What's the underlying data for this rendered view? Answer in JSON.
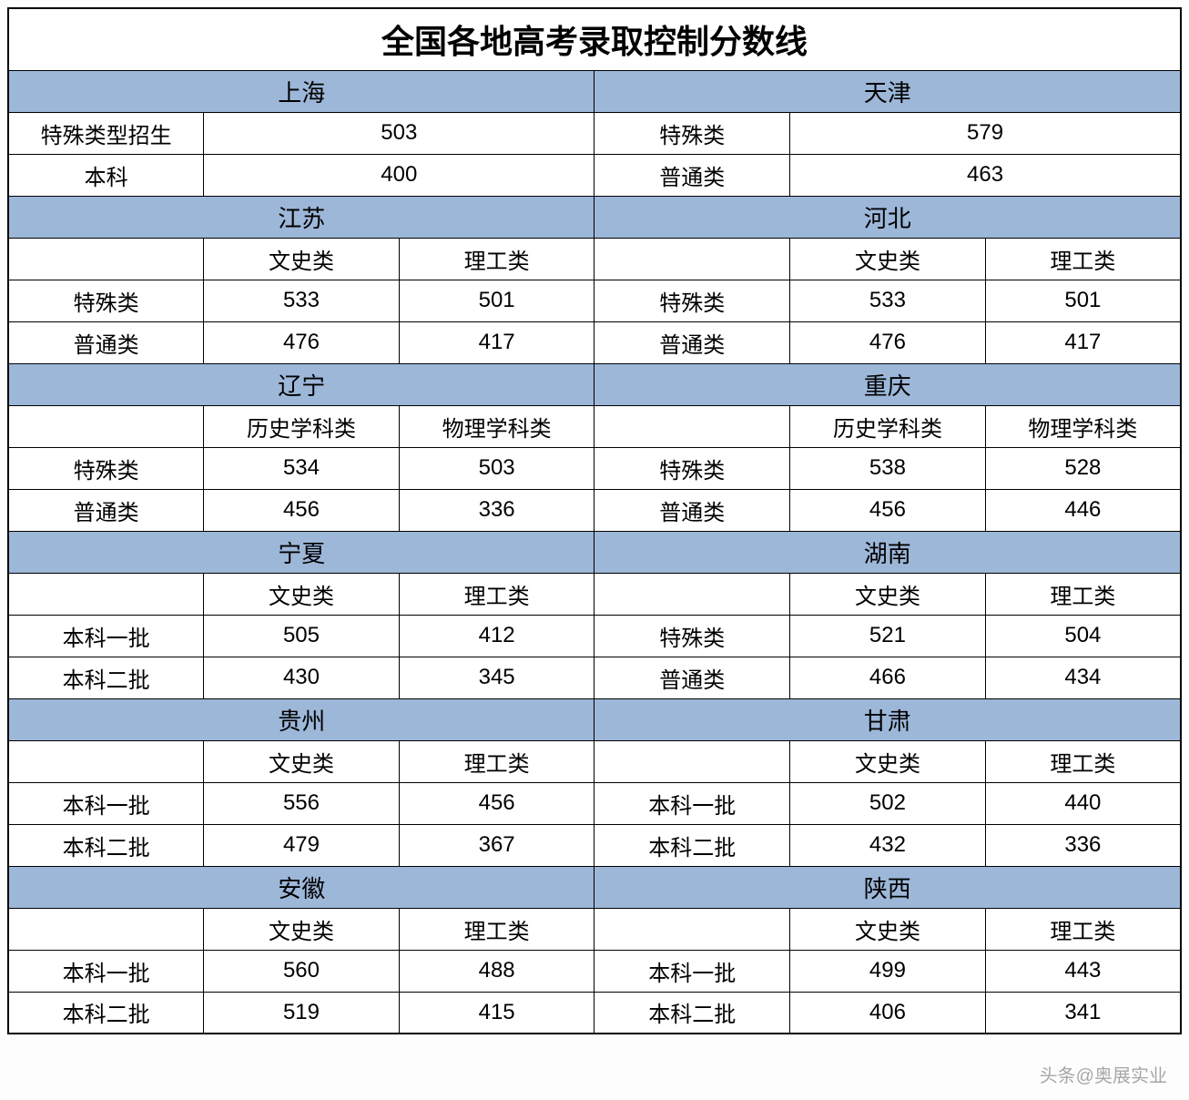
{
  "colors": {
    "region_header_bg": "#9db7d9",
    "cell_bg": "#ffffff",
    "border": "#000000"
  },
  "typography": {
    "title_fontsize": 36,
    "region_fontsize": 26,
    "cell_fontsize": 24,
    "font_family": "Microsoft YaHei"
  },
  "title": "全国各地高考录取控制分数线",
  "watermark": "头条@奥展实业",
  "blocks": [
    {
      "layout": "pair_single",
      "left": {
        "region": "上海",
        "rows": [
          {
            "label": "特殊类型招生",
            "value": "503"
          },
          {
            "label": "本科",
            "value": "400"
          }
        ]
      },
      "right": {
        "region": "天津",
        "rows": [
          {
            "label": "特殊类",
            "value": "579"
          },
          {
            "label": "普通类",
            "value": "463"
          }
        ]
      }
    },
    {
      "layout": "pair_double",
      "left": {
        "region": "江苏",
        "col1": "文史类",
        "col2": "理工类",
        "rows": [
          {
            "label": "特殊类",
            "v1": "533",
            "v2": "501"
          },
          {
            "label": "普通类",
            "v1": "476",
            "v2": "417"
          }
        ]
      },
      "right": {
        "region": "河北",
        "col1": "文史类",
        "col2": "理工类",
        "rows": [
          {
            "label": "特殊类",
            "v1": "533",
            "v2": "501"
          },
          {
            "label": "普通类",
            "v1": "476",
            "v2": "417"
          }
        ]
      }
    },
    {
      "layout": "pair_double",
      "left": {
        "region": "辽宁",
        "col1": "历史学科类",
        "col2": "物理学科类",
        "rows": [
          {
            "label": "特殊类",
            "v1": "534",
            "v2": "503"
          },
          {
            "label": "普通类",
            "v1": "456",
            "v2": "336"
          }
        ]
      },
      "right": {
        "region": "重庆",
        "col1": "历史学科类",
        "col2": "物理学科类",
        "rows": [
          {
            "label": "特殊类",
            "v1": "538",
            "v2": "528"
          },
          {
            "label": "普通类",
            "v1": "456",
            "v2": "446"
          }
        ]
      }
    },
    {
      "layout": "pair_double",
      "left": {
        "region": "宁夏",
        "col1": "文史类",
        "col2": "理工类",
        "rows": [
          {
            "label": "本科一批",
            "v1": "505",
            "v2": "412"
          },
          {
            "label": "本科二批",
            "v1": "430",
            "v2": "345"
          }
        ]
      },
      "right": {
        "region": "湖南",
        "col1": "文史类",
        "col2": "理工类",
        "rows": [
          {
            "label": "特殊类",
            "v1": "521",
            "v2": "504"
          },
          {
            "label": "普通类",
            "v1": "466",
            "v2": "434"
          }
        ]
      }
    },
    {
      "layout": "pair_double",
      "left": {
        "region": "贵州",
        "col1": "文史类",
        "col2": "理工类",
        "rows": [
          {
            "label": "本科一批",
            "v1": "556",
            "v2": "456"
          },
          {
            "label": "本科二批",
            "v1": "479",
            "v2": "367"
          }
        ]
      },
      "right": {
        "region": "甘肃",
        "col1": "文史类",
        "col2": "理工类",
        "rows": [
          {
            "label": "本科一批",
            "v1": "502",
            "v2": "440"
          },
          {
            "label": "本科二批",
            "v1": "432",
            "v2": "336"
          }
        ]
      }
    },
    {
      "layout": "pair_double",
      "left": {
        "region": "安徽",
        "col1": "文史类",
        "col2": "理工类",
        "rows": [
          {
            "label": "本科一批",
            "v1": "560",
            "v2": "488"
          },
          {
            "label": "本科二批",
            "v1": "519",
            "v2": "415"
          }
        ]
      },
      "right": {
        "region": "陕西",
        "col1": "文史类",
        "col2": "理工类",
        "rows": [
          {
            "label": "本科一批",
            "v1": "499",
            "v2": "443"
          },
          {
            "label": "本科二批",
            "v1": "406",
            "v2": "341"
          }
        ]
      }
    }
  ]
}
